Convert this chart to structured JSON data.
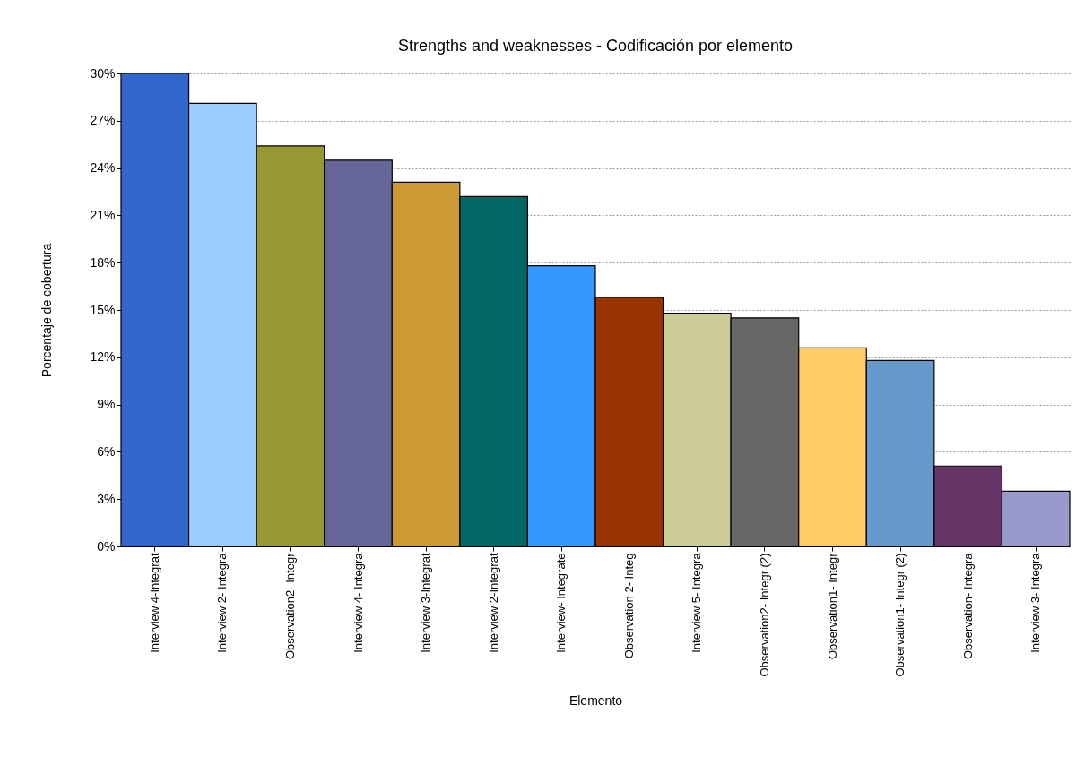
{
  "chart_data": {
    "type": "bar",
    "title": "Strengths and weaknesses - Codificación por elemento",
    "xlabel": "Elemento",
    "ylabel": "Porcentaje de cobertura",
    "categories": [
      "Interview 4-Integrat",
      "Interview 2- Integra",
      "Observation2- Integr",
      "Interview 4- Integra",
      "Interview 3-Integrat",
      "Interview 2-Integrat",
      "Interview- Integrate",
      "Observation 2- Integ",
      "Interview 5- Integra",
      "Observation2- Integr (2)",
      "Observation1- Integr",
      "Observation1- Integr (2)",
      "Observation- Integra",
      "Interview 3- Integra"
    ],
    "values": [
      30,
      28.1,
      25.4,
      24.5,
      23.1,
      22.2,
      17.8,
      15.8,
      14.8,
      14.5,
      12.6,
      11.8,
      5.1,
      3.5
    ],
    "colors": [
      "#3366cc",
      "#99ccff",
      "#999933",
      "#666699",
      "#cc9933",
      "#006666",
      "#3399ff",
      "#993300",
      "#cccc99",
      "#666666",
      "#ffcc66",
      "#6699cc",
      "#663366",
      "#9999cc"
    ],
    "ylim": [
      0,
      30
    ],
    "yticks": [
      {
        "value": 0,
        "label": "0%"
      },
      {
        "value": 3,
        "label": "3%"
      },
      {
        "value": 6,
        "label": "6%"
      },
      {
        "value": 9,
        "label": "9%"
      },
      {
        "value": 12,
        "label": "12%"
      },
      {
        "value": 15,
        "label": "15%"
      },
      {
        "value": 18,
        "label": "18%"
      },
      {
        "value": 21,
        "label": "21%"
      },
      {
        "value": 24,
        "label": "24%"
      },
      {
        "value": 27,
        "label": "27%"
      },
      {
        "value": 30,
        "label": "30%"
      }
    ],
    "grid": "y",
    "legend": false
  }
}
